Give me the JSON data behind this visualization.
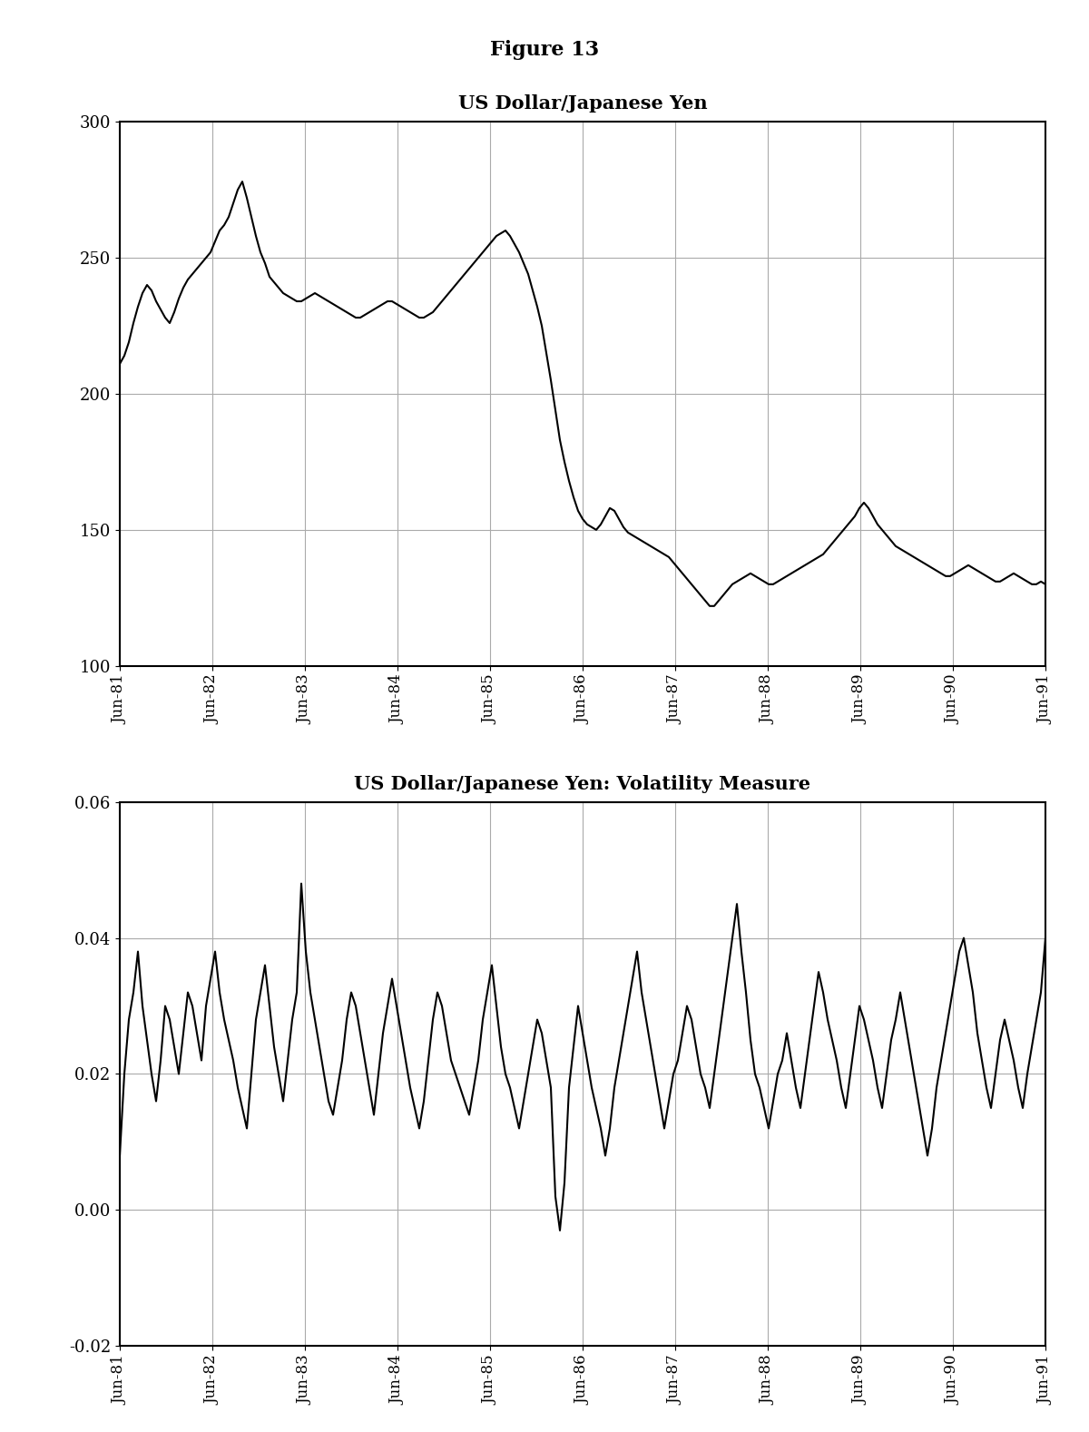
{
  "figure_title": "Figure 13",
  "chart1_title": "US Dollar/Japanese Yen",
  "chart2_title": "US Dollar/Japanese Yen: Volatility Measure",
  "background_color": "#ffffff",
  "line_color": "#000000",
  "line_width": 1.5,
  "chart1_ylim": [
    100,
    300
  ],
  "chart1_yticks": [
    100,
    150,
    200,
    250,
    300
  ],
  "chart2_ylim": [
    -0.02,
    0.06
  ],
  "chart2_yticks": [
    -0.02,
    0.0,
    0.02,
    0.04,
    0.06
  ],
  "xtick_labels": [
    "Jun-81",
    "Jun-82",
    "Jun-83",
    "Jun-84",
    "Jun-85",
    "Jun-86",
    "Jun-87",
    "Jun-88",
    "Jun-89",
    "Jun-90",
    "Jun-91"
  ],
  "usd_jpy": [
    211,
    214,
    219,
    226,
    232,
    237,
    240,
    238,
    234,
    231,
    228,
    226,
    230,
    235,
    239,
    242,
    244,
    246,
    248,
    250,
    252,
    256,
    260,
    262,
    265,
    270,
    275,
    278,
    272,
    265,
    258,
    252,
    248,
    243,
    241,
    239,
    237,
    236,
    235,
    234,
    234,
    235,
    236,
    237,
    236,
    235,
    234,
    233,
    232,
    231,
    230,
    229,
    228,
    228,
    229,
    230,
    231,
    232,
    233,
    234,
    234,
    233,
    232,
    231,
    230,
    229,
    228,
    228,
    229,
    230,
    232,
    234,
    236,
    238,
    240,
    242,
    244,
    246,
    248,
    250,
    252,
    254,
    256,
    258,
    259,
    260,
    258,
    255,
    252,
    248,
    244,
    238,
    232,
    225,
    215,
    205,
    194,
    183,
    175,
    168,
    162,
    157,
    154,
    152,
    151,
    150,
    152,
    155,
    158,
    157,
    154,
    151,
    149,
    148,
    147,
    146,
    145,
    144,
    143,
    142,
    141,
    140,
    138,
    136,
    134,
    132,
    130,
    128,
    126,
    124,
    122,
    122,
    124,
    126,
    128,
    130,
    131,
    132,
    133,
    134,
    133,
    132,
    131,
    130,
    130,
    131,
    132,
    133,
    134,
    135,
    136,
    137,
    138,
    139,
    140,
    141,
    143,
    145,
    147,
    149,
    151,
    153,
    155,
    158,
    160,
    158,
    155,
    152,
    150,
    148,
    146,
    144,
    143,
    142,
    141,
    140,
    139,
    138,
    137,
    136,
    135,
    134,
    133,
    133,
    134,
    135,
    136,
    137,
    136,
    135,
    134,
    133,
    132,
    131,
    131,
    132,
    133,
    134,
    133,
    132,
    131,
    130,
    130,
    131,
    130
  ],
  "volatility": [
    0.008,
    0.02,
    0.028,
    0.032,
    0.038,
    0.03,
    0.025,
    0.02,
    0.016,
    0.022,
    0.03,
    0.028,
    0.024,
    0.02,
    0.026,
    0.032,
    0.03,
    0.026,
    0.022,
    0.03,
    0.034,
    0.038,
    0.032,
    0.028,
    0.025,
    0.022,
    0.018,
    0.015,
    0.012,
    0.02,
    0.028,
    0.032,
    0.036,
    0.03,
    0.024,
    0.02,
    0.016,
    0.022,
    0.028,
    0.032,
    0.048,
    0.038,
    0.032,
    0.028,
    0.024,
    0.02,
    0.016,
    0.014,
    0.018,
    0.022,
    0.028,
    0.032,
    0.03,
    0.026,
    0.022,
    0.018,
    0.014,
    0.02,
    0.026,
    0.03,
    0.034,
    0.03,
    0.026,
    0.022,
    0.018,
    0.015,
    0.012,
    0.016,
    0.022,
    0.028,
    0.032,
    0.03,
    0.026,
    0.022,
    0.02,
    0.018,
    0.016,
    0.014,
    0.018,
    0.022,
    0.028,
    0.032,
    0.036,
    0.03,
    0.024,
    0.02,
    0.018,
    0.015,
    0.012,
    0.016,
    0.02,
    0.024,
    0.028,
    0.026,
    0.022,
    0.018,
    0.002,
    -0.003,
    0.004,
    0.018,
    0.024,
    0.03,
    0.026,
    0.022,
    0.018,
    0.015,
    0.012,
    0.008,
    0.012,
    0.018,
    0.022,
    0.026,
    0.03,
    0.034,
    0.038,
    0.032,
    0.028,
    0.024,
    0.02,
    0.016,
    0.012,
    0.016,
    0.02,
    0.022,
    0.026,
    0.03,
    0.028,
    0.024,
    0.02,
    0.018,
    0.015,
    0.02,
    0.025,
    0.03,
    0.035,
    0.04,
    0.045,
    0.038,
    0.032,
    0.025,
    0.02,
    0.018,
    0.015,
    0.012,
    0.016,
    0.02,
    0.022,
    0.026,
    0.022,
    0.018,
    0.015,
    0.02,
    0.025,
    0.03,
    0.035,
    0.032,
    0.028,
    0.025,
    0.022,
    0.018,
    0.015,
    0.02,
    0.025,
    0.03,
    0.028,
    0.025,
    0.022,
    0.018,
    0.015,
    0.02,
    0.025,
    0.028,
    0.032,
    0.028,
    0.024,
    0.02,
    0.016,
    0.012,
    0.008,
    0.012,
    0.018,
    0.022,
    0.026,
    0.03,
    0.034,
    0.038,
    0.04,
    0.036,
    0.032,
    0.026,
    0.022,
    0.018,
    0.015,
    0.02,
    0.025,
    0.028,
    0.025,
    0.022,
    0.018,
    0.015,
    0.02,
    0.024,
    0.028,
    0.032,
    0.04
  ]
}
